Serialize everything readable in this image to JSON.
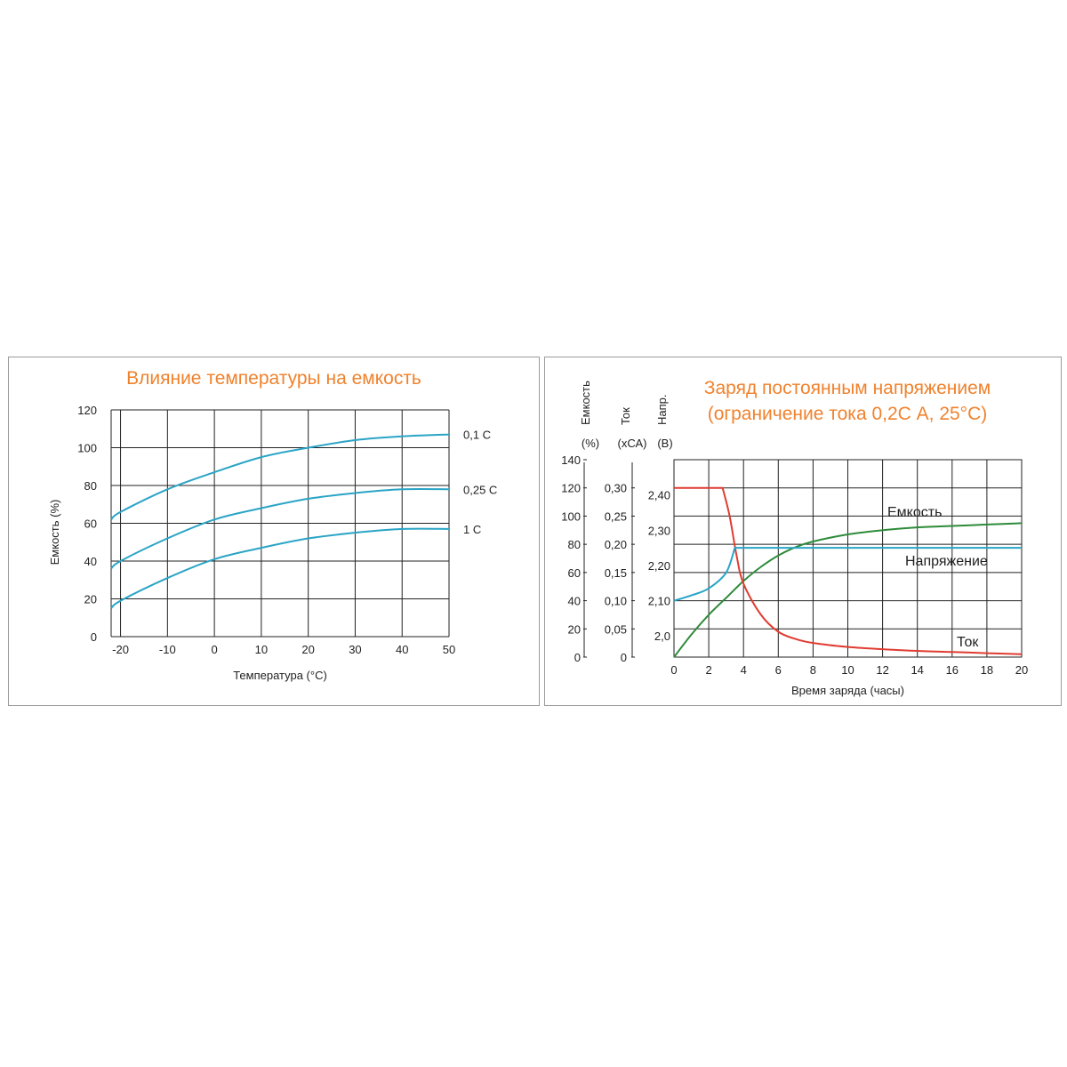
{
  "chart_data": [
    {
      "type": "line",
      "title": "Влияние температуры на емкость",
      "xlabel": "Температура (°C)",
      "ylabel": "Емкость (%)",
      "xlim": [
        -22,
        50
      ],
      "ylim": [
        0,
        120
      ],
      "x_ticks": [
        "-20",
        "-10",
        "0",
        "10",
        "20",
        "30",
        "40",
        "50"
      ],
      "y_ticks": [
        "0",
        "20",
        "40",
        "60",
        "80",
        "100",
        "120"
      ],
      "grid": true,
      "colors": {
        "series": "#2aa4c6",
        "grid": "#222222"
      },
      "series": [
        {
          "name": "0,1 C",
          "x": [
            -22,
            -20,
            -10,
            0,
            10,
            20,
            30,
            40,
            50
          ],
          "values": [
            62,
            66,
            78,
            87,
            95,
            100,
            104,
            106,
            107
          ]
        },
        {
          "name": "0,25 C",
          "x": [
            -22,
            -20,
            -10,
            0,
            10,
            20,
            30,
            40,
            50
          ],
          "values": [
            36,
            40,
            52,
            62,
            68,
            73,
            76,
            78,
            78
          ]
        },
        {
          "name": "1 C",
          "x": [
            -22,
            -20,
            -10,
            0,
            10,
            20,
            30,
            40,
            50
          ],
          "values": [
            15,
            19,
            31,
            41,
            47,
            52,
            55,
            57,
            57
          ]
        }
      ]
    },
    {
      "type": "line",
      "title": "Заряд постоянным напряжением",
      "subtitle": "(ограничение тока 0,2С А, 25°С)",
      "xlabel": "Время заряда (часы)",
      "xlim": [
        0,
        20
      ],
      "x_ticks": [
        "0",
        "2",
        "4",
        "6",
        "8",
        "10",
        "12",
        "14",
        "16",
        "18",
        "20"
      ],
      "grid": true,
      "axes": [
        {
          "label": "Емкость",
          "unit": "(%)",
          "range": [
            0,
            140
          ],
          "ticks": [
            "0",
            "20",
            "40",
            "60",
            "80",
            "100",
            "120",
            "140"
          ]
        },
        {
          "label": "Ток",
          "unit": "(хСА)",
          "range": [
            0,
            0.35
          ],
          "ticks": [
            "0",
            "0,05",
            "0,10",
            "0,15",
            "0,20",
            "0,25",
            "0,30"
          ]
        },
        {
          "label": "Напр.",
          "unit": "(В)",
          "range": [
            1.94,
            2.5
          ],
          "ticks": [
            "2,0",
            "2,10",
            "2,20",
            "2,30",
            "2,40"
          ]
        }
      ],
      "colors": {
        "capacity": "#2e8b3a",
        "current": "#e03c31",
        "voltage": "#2aa4c6",
        "grid": "#222222"
      },
      "series": [
        {
          "name": "Емкость",
          "axis": "capacity",
          "x": [
            0,
            1,
            2,
            3,
            4,
            5,
            6,
            7,
            8,
            10,
            12,
            14,
            16,
            18,
            20
          ],
          "values": [
            0,
            16,
            30,
            42,
            54,
            64,
            72,
            78,
            82,
            87,
            90,
            92,
            93,
            94,
            95
          ]
        },
        {
          "name": "Ток",
          "axis": "current",
          "x": [
            0,
            2.8,
            3.2,
            3.6,
            4,
            5,
            6,
            7,
            8,
            10,
            12,
            14,
            16,
            18,
            20
          ],
          "values": [
            0.3,
            0.3,
            0.25,
            0.18,
            0.13,
            0.075,
            0.045,
            0.032,
            0.025,
            0.018,
            0.014,
            0.011,
            0.009,
            0.007,
            0.005
          ]
        },
        {
          "name": "Напряжение",
          "axis": "voltage",
          "x": [
            0,
            1,
            2,
            3,
            3.5,
            4,
            6,
            8,
            10,
            12,
            14,
            16,
            18,
            20
          ],
          "values": [
            2.1,
            2.115,
            2.135,
            2.18,
            2.25,
            2.25,
            2.25,
            2.25,
            2.25,
            2.25,
            2.25,
            2.25,
            2.25,
            2.25
          ]
        }
      ]
    }
  ]
}
